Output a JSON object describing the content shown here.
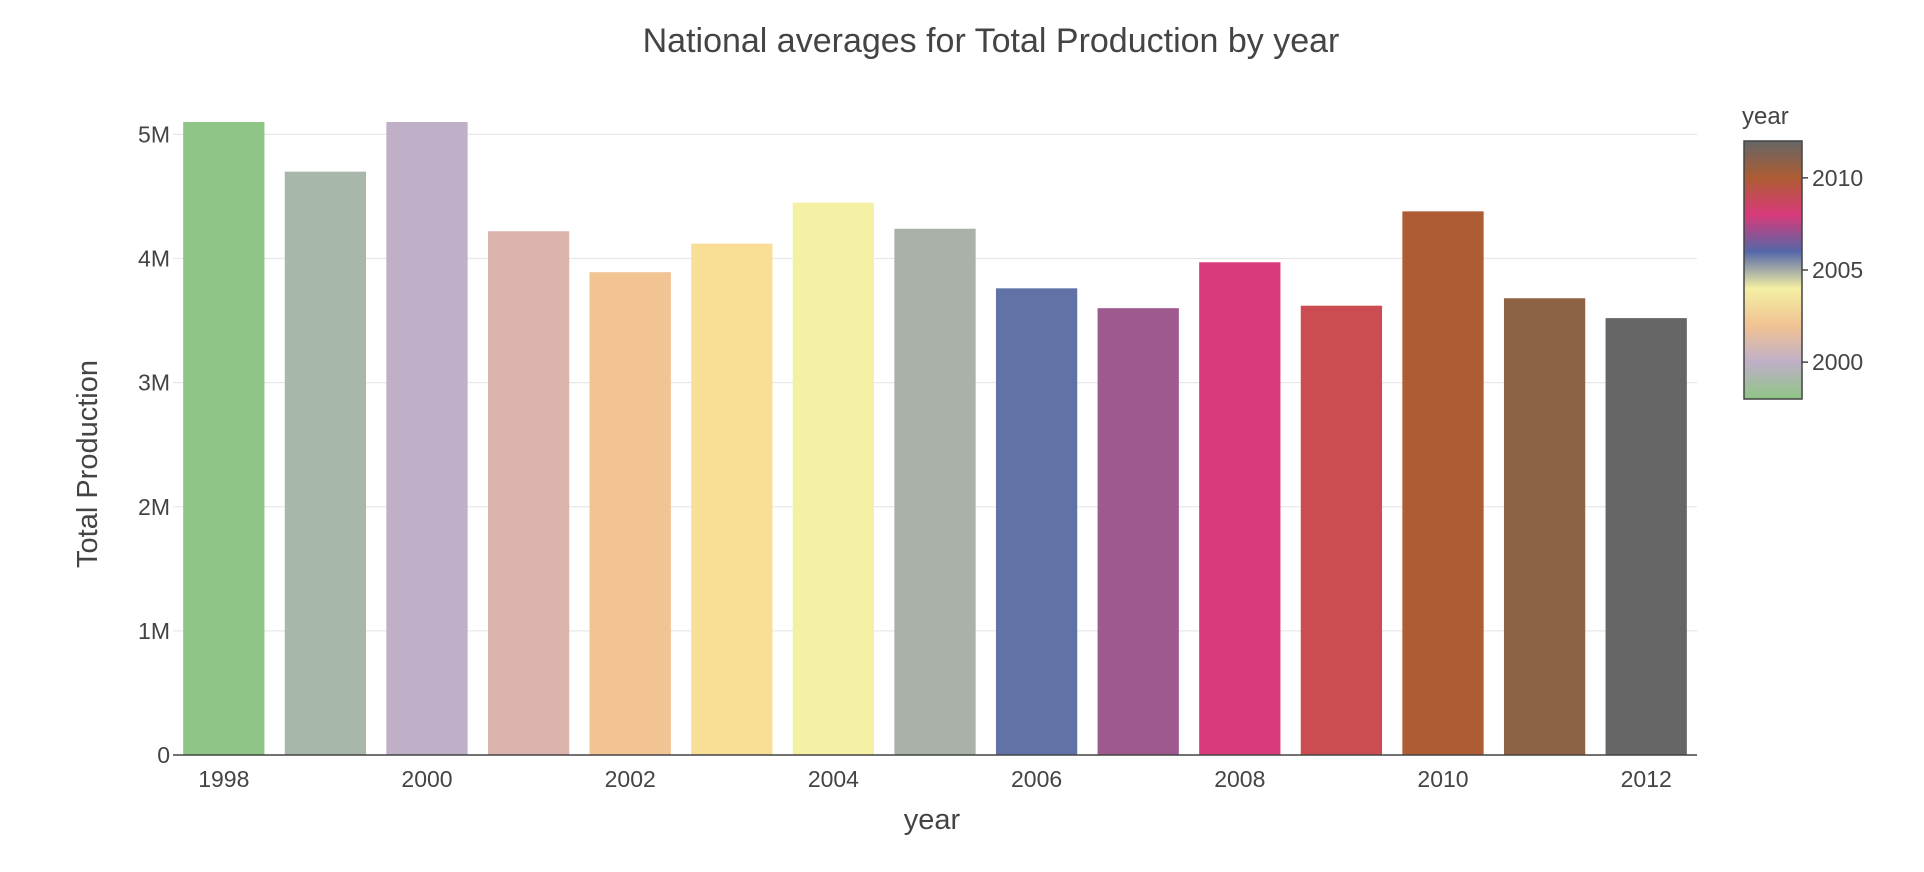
{
  "chart_data": {
    "type": "bar",
    "title": "National averages for Total Production by year",
    "xlabel": "year",
    "ylabel": "Total Production",
    "categories": [
      1998,
      1999,
      2000,
      2001,
      2002,
      2003,
      2004,
      2005,
      2006,
      2007,
      2008,
      2009,
      2010,
      2011,
      2012
    ],
    "values": [
      5100000,
      4700000,
      5100000,
      4220000,
      3890000,
      4120000,
      4450000,
      4240000,
      3760000,
      3600000,
      3970000,
      3620000,
      4380000,
      3680000,
      3520000
    ],
    "bar_colors": [
      "#8fc586",
      "#a7b8aa",
      "#bfafc7",
      "#dbb5ad",
      "#f2c393",
      "#f9df95",
      "#f4f0a4",
      "#aab1a8",
      "#6173a6",
      "#9e598f",
      "#d83a7a",
      "#cc4d51",
      "#ad5c33",
      "#8e6244",
      "#666666"
    ],
    "ylim": [
      0,
      5100000
    ],
    "y_ticks": [
      {
        "value": 0,
        "label": "0"
      },
      {
        "value": 1000000,
        "label": "1M"
      },
      {
        "value": 2000000,
        "label": "2M"
      },
      {
        "value": 3000000,
        "label": "3M"
      },
      {
        "value": 4000000,
        "label": "4M"
      },
      {
        "value": 5000000,
        "label": "5M"
      }
    ],
    "x_ticks": [
      {
        "value": 1998,
        "label": "1998"
      },
      {
        "value": 2000,
        "label": "2000"
      },
      {
        "value": 2002,
        "label": "2002"
      },
      {
        "value": 2004,
        "label": "2004"
      },
      {
        "value": 2006,
        "label": "2006"
      },
      {
        "value": 2008,
        "label": "2008"
      },
      {
        "value": 2010,
        "label": "2010"
      },
      {
        "value": 2012,
        "label": "2012"
      }
    ],
    "grid": true,
    "colorbar": {
      "title": "year",
      "range": [
        1998,
        2012
      ],
      "ticks": [
        {
          "value": 2000,
          "label": "2000"
        },
        {
          "value": 2005,
          "label": "2005"
        },
        {
          "value": 2010,
          "label": "2010"
        }
      ],
      "colorscale": [
        "#8fc586",
        "#bfafc7",
        "#f2c393",
        "#f4f0a4",
        "#5467a8",
        "#d83a7a",
        "#ad5c33",
        "#666666"
      ]
    }
  }
}
